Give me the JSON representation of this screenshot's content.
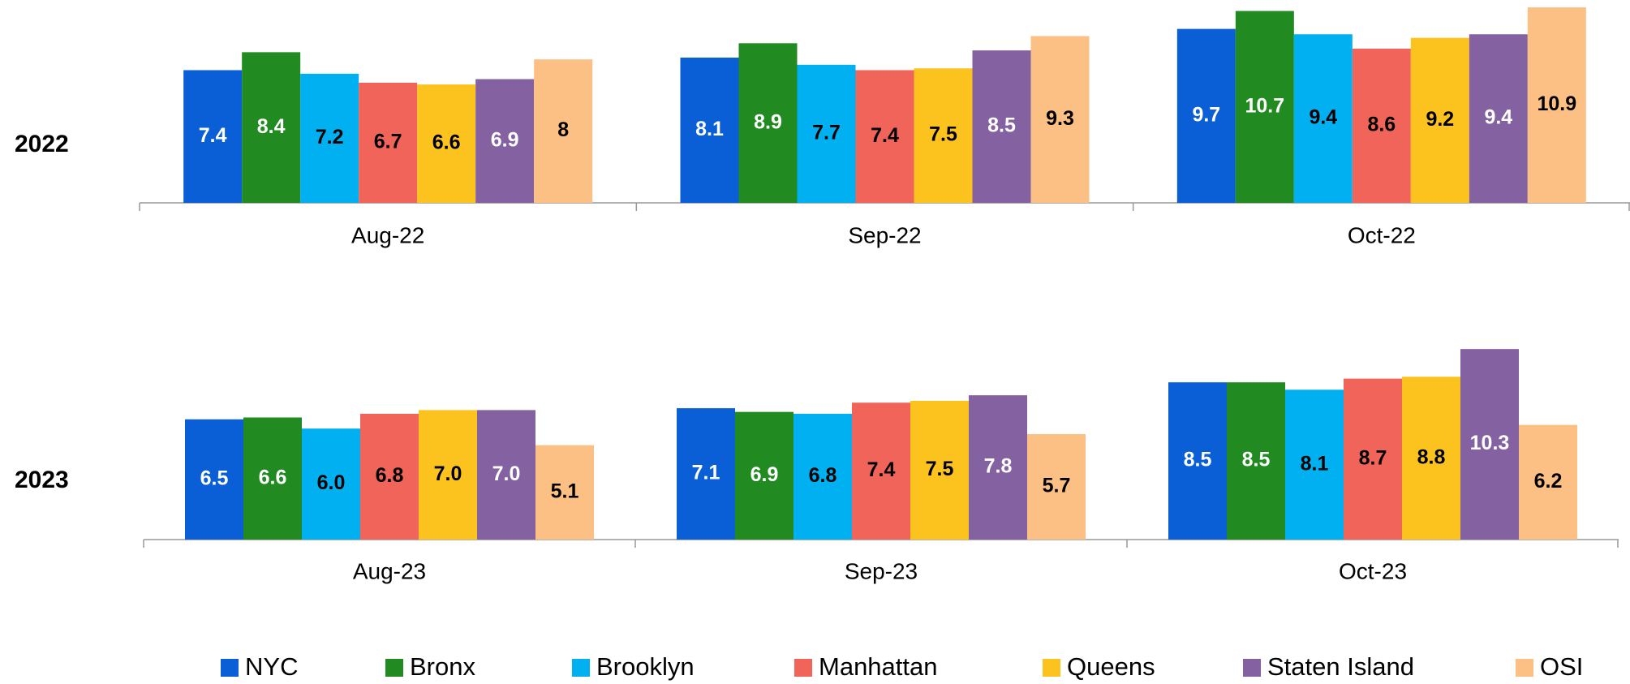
{
  "chart_data": [
    {
      "type": "bar",
      "title": "2022",
      "categories": [
        "Aug-22",
        "Sep-22",
        "Oct-22"
      ],
      "series": [
        {
          "name": "NYC",
          "color": "#0a5fd6",
          "label_color": "#ffffff",
          "values": [
            7.4,
            8.1,
            9.7
          ]
        },
        {
          "name": "Bronx",
          "color": "#218a21",
          "label_color": "#ffffff",
          "values": [
            8.4,
            8.9,
            10.7
          ]
        },
        {
          "name": "Brooklyn",
          "color": "#00b0f0",
          "label_color": "#000000",
          "values": [
            7.2,
            7.7,
            9.4
          ]
        },
        {
          "name": "Manhattan",
          "color": "#f0645a",
          "label_color": "#000000",
          "values": [
            6.7,
            7.4,
            8.6
          ]
        },
        {
          "name": "Queens",
          "color": "#fcc21e",
          "label_color": "#000000",
          "values": [
            6.6,
            7.5,
            9.2
          ]
        },
        {
          "name": "Staten Island",
          "color": "#8461a0",
          "label_color": "#ffffff",
          "values": [
            6.9,
            8.5,
            9.4
          ]
        },
        {
          "name": "OSI",
          "color": "#fdc084",
          "label_color": "#000000",
          "values": [
            8,
            9.3,
            10.9
          ]
        }
      ]
    },
    {
      "type": "bar",
      "title": "2023",
      "categories": [
        "Aug-23",
        "Sep-23",
        "Oct-23"
      ],
      "series": [
        {
          "name": "NYC",
          "color": "#0a5fd6",
          "label_color": "#ffffff",
          "values": [
            6.5,
            7.1,
            8.5
          ]
        },
        {
          "name": "Bronx",
          "color": "#218a21",
          "label_color": "#ffffff",
          "values": [
            6.6,
            6.9,
            8.5
          ]
        },
        {
          "name": "Brooklyn",
          "color": "#00b0f0",
          "label_color": "#000000",
          "values": [
            6,
            6.8,
            8.1
          ],
          "value_labels": [
            "6.0",
            "6.8",
            "8.1"
          ]
        },
        {
          "name": "Manhattan",
          "color": "#f0645a",
          "label_color": "#000000",
          "values": [
            6.8,
            7.4,
            8.7
          ]
        },
        {
          "name": "Queens",
          "color": "#fcc21e",
          "label_color": "#000000",
          "values": [
            7,
            7.5,
            8.8
          ],
          "value_labels": [
            "7.0",
            "7.5",
            "8.8"
          ]
        },
        {
          "name": "Staten Island",
          "color": "#8461a0",
          "label_color": "#ffffff",
          "values": [
            7,
            7.8,
            10.3
          ],
          "value_labels": [
            "7.0",
            "7.8",
            "10.3"
          ]
        },
        {
          "name": "OSI",
          "color": "#fdc084",
          "label_color": "#000000",
          "values": [
            5.1,
            5.7,
            6.2
          ]
        }
      ]
    }
  ]
}
